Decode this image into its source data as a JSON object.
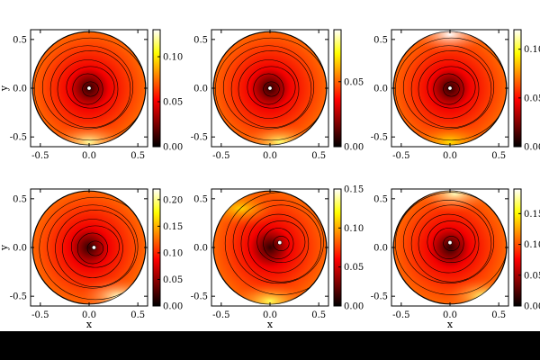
{
  "chart_data": [
    {
      "type": "heatmap",
      "panel_row": 1,
      "panel_col": 1,
      "xlabel": "",
      "ylabel": "y",
      "xlim": [
        -0.6,
        0.6
      ],
      "ylim": [
        -0.6,
        0.6
      ],
      "xticks": [
        "-0.5",
        "0.0",
        "0.5"
      ],
      "yticks": [
        "0.5",
        "0.0",
        "-0.5"
      ],
      "colorbar": {
        "min": 0.0,
        "max": 0.13,
        "ticks": [
          "0.00",
          "0.05",
          "0.10"
        ]
      },
      "domain": "disk r=0.58",
      "contours": true,
      "minimum": {
        "x": 0.0,
        "y": 0.0,
        "value": 0.0
      },
      "features": [
        {
          "x": 0.0,
          "y": -0.55,
          "value": 0.12,
          "label": "bright edge"
        }
      ]
    },
    {
      "type": "heatmap",
      "panel_row": 1,
      "panel_col": 2,
      "xlabel": "",
      "ylabel": "",
      "xlim": [
        -0.6,
        0.6
      ],
      "ylim": [
        -0.6,
        0.6
      ],
      "xticks": [
        "-0.5",
        "0.0",
        "0.5"
      ],
      "yticks": [
        "0.5",
        "0.0",
        "-0.5"
      ],
      "colorbar": {
        "min": 0.0,
        "max": 0.09,
        "ticks": [
          "0.00",
          "0.05"
        ]
      },
      "domain": "disk r=0.58",
      "contours": true,
      "minimum": {
        "x": 0.0,
        "y": 0.0,
        "value": 0.0
      },
      "features": [
        {
          "x": 0.1,
          "y": -0.55,
          "value": 0.08,
          "label": "bright edge"
        }
      ]
    },
    {
      "type": "heatmap",
      "panel_row": 1,
      "panel_col": 3,
      "xlabel": "",
      "ylabel": "",
      "xlim": [
        -0.6,
        0.6
      ],
      "ylim": [
        -0.6,
        0.6
      ],
      "xticks": [
        "-0.5",
        "0.0",
        "0.5"
      ],
      "yticks": [
        "0.5",
        "0.0",
        "-0.5"
      ],
      "colorbar": {
        "min": 0.0,
        "max": 0.12,
        "ticks": [
          "0.00",
          "0.05",
          "0.10"
        ]
      },
      "domain": "disk r=0.58",
      "contours": true,
      "minimum": {
        "x": 0.0,
        "y": 0.0,
        "value": 0.0
      },
      "features": [
        {
          "x": 0.0,
          "y": 0.55,
          "value": 0.12,
          "label": "bright edge"
        },
        {
          "x": 0.0,
          "y": -0.55,
          "value": 0.09,
          "label": "bright edge"
        }
      ]
    },
    {
      "type": "heatmap",
      "panel_row": 2,
      "panel_col": 1,
      "xlabel": "x",
      "ylabel": "y",
      "xlim": [
        -0.6,
        0.6
      ],
      "ylim": [
        -0.6,
        0.6
      ],
      "xticks": [
        "-0.5",
        "0.0",
        "0.5"
      ],
      "yticks": [
        "0.5",
        "0.0",
        "-0.5"
      ],
      "colorbar": {
        "min": 0.0,
        "max": 0.22,
        "ticks": [
          "0.00",
          "0.05",
          "0.10",
          "0.15",
          "0.20"
        ]
      },
      "domain": "disk r=0.58",
      "contours": true,
      "minimum": {
        "x": 0.05,
        "y": 0.0,
        "value": 0.02
      },
      "features": [
        {
          "x": 0.3,
          "y": -0.5,
          "value": 0.21,
          "label": "bright edge"
        }
      ]
    },
    {
      "type": "heatmap",
      "panel_row": 2,
      "panel_col": 2,
      "xlabel": "x",
      "ylabel": "",
      "xlim": [
        -0.6,
        0.6
      ],
      "ylim": [
        -0.6,
        0.6
      ],
      "xticks": [
        "-0.5",
        "0.0",
        "0.5"
      ],
      "yticks": [
        "0.5",
        "0.0",
        "-0.5"
      ],
      "colorbar": {
        "min": 0.0,
        "max": 0.15,
        "ticks": [
          "0.00",
          "0.05",
          "0.10",
          "0.15"
        ]
      },
      "domain": "disk r=0.58",
      "contours": true,
      "minimum": {
        "x": 0.1,
        "y": 0.05,
        "value": 0.02
      },
      "features": [
        {
          "x": 0.0,
          "y": -0.55,
          "value": 0.13,
          "label": "bright edge"
        },
        {
          "x": -0.3,
          "y": 0.4,
          "value": 0.11,
          "label": "bright edge"
        }
      ]
    },
    {
      "type": "heatmap",
      "panel_row": 2,
      "panel_col": 3,
      "xlabel": "x",
      "ylabel": "",
      "xlim": [
        -0.6,
        0.6
      ],
      "ylim": [
        -0.6,
        0.6
      ],
      "xticks": [
        "-0.5",
        "0.0",
        "0.5"
      ],
      "yticks": [
        "0.5",
        "0.0",
        "-0.5"
      ],
      "colorbar": {
        "min": 0.0,
        "max": 0.19,
        "ticks": [
          "0.00",
          "0.05",
          "0.10",
          "0.15"
        ]
      },
      "domain": "disk r=0.58",
      "contours": true,
      "minimum": {
        "x": 0.0,
        "y": 0.05,
        "value": 0.0
      },
      "features": [
        {
          "x": 0.05,
          "y": 0.55,
          "value": 0.18,
          "label": "bright edge"
        },
        {
          "x": 0.35,
          "y": -0.5,
          "value": 0.17,
          "label": "bright edge"
        }
      ]
    }
  ],
  "colors": {
    "page_background": "#000000",
    "figure_background": "#ffffff",
    "colormap": "hot",
    "contour_color": "#000000"
  }
}
